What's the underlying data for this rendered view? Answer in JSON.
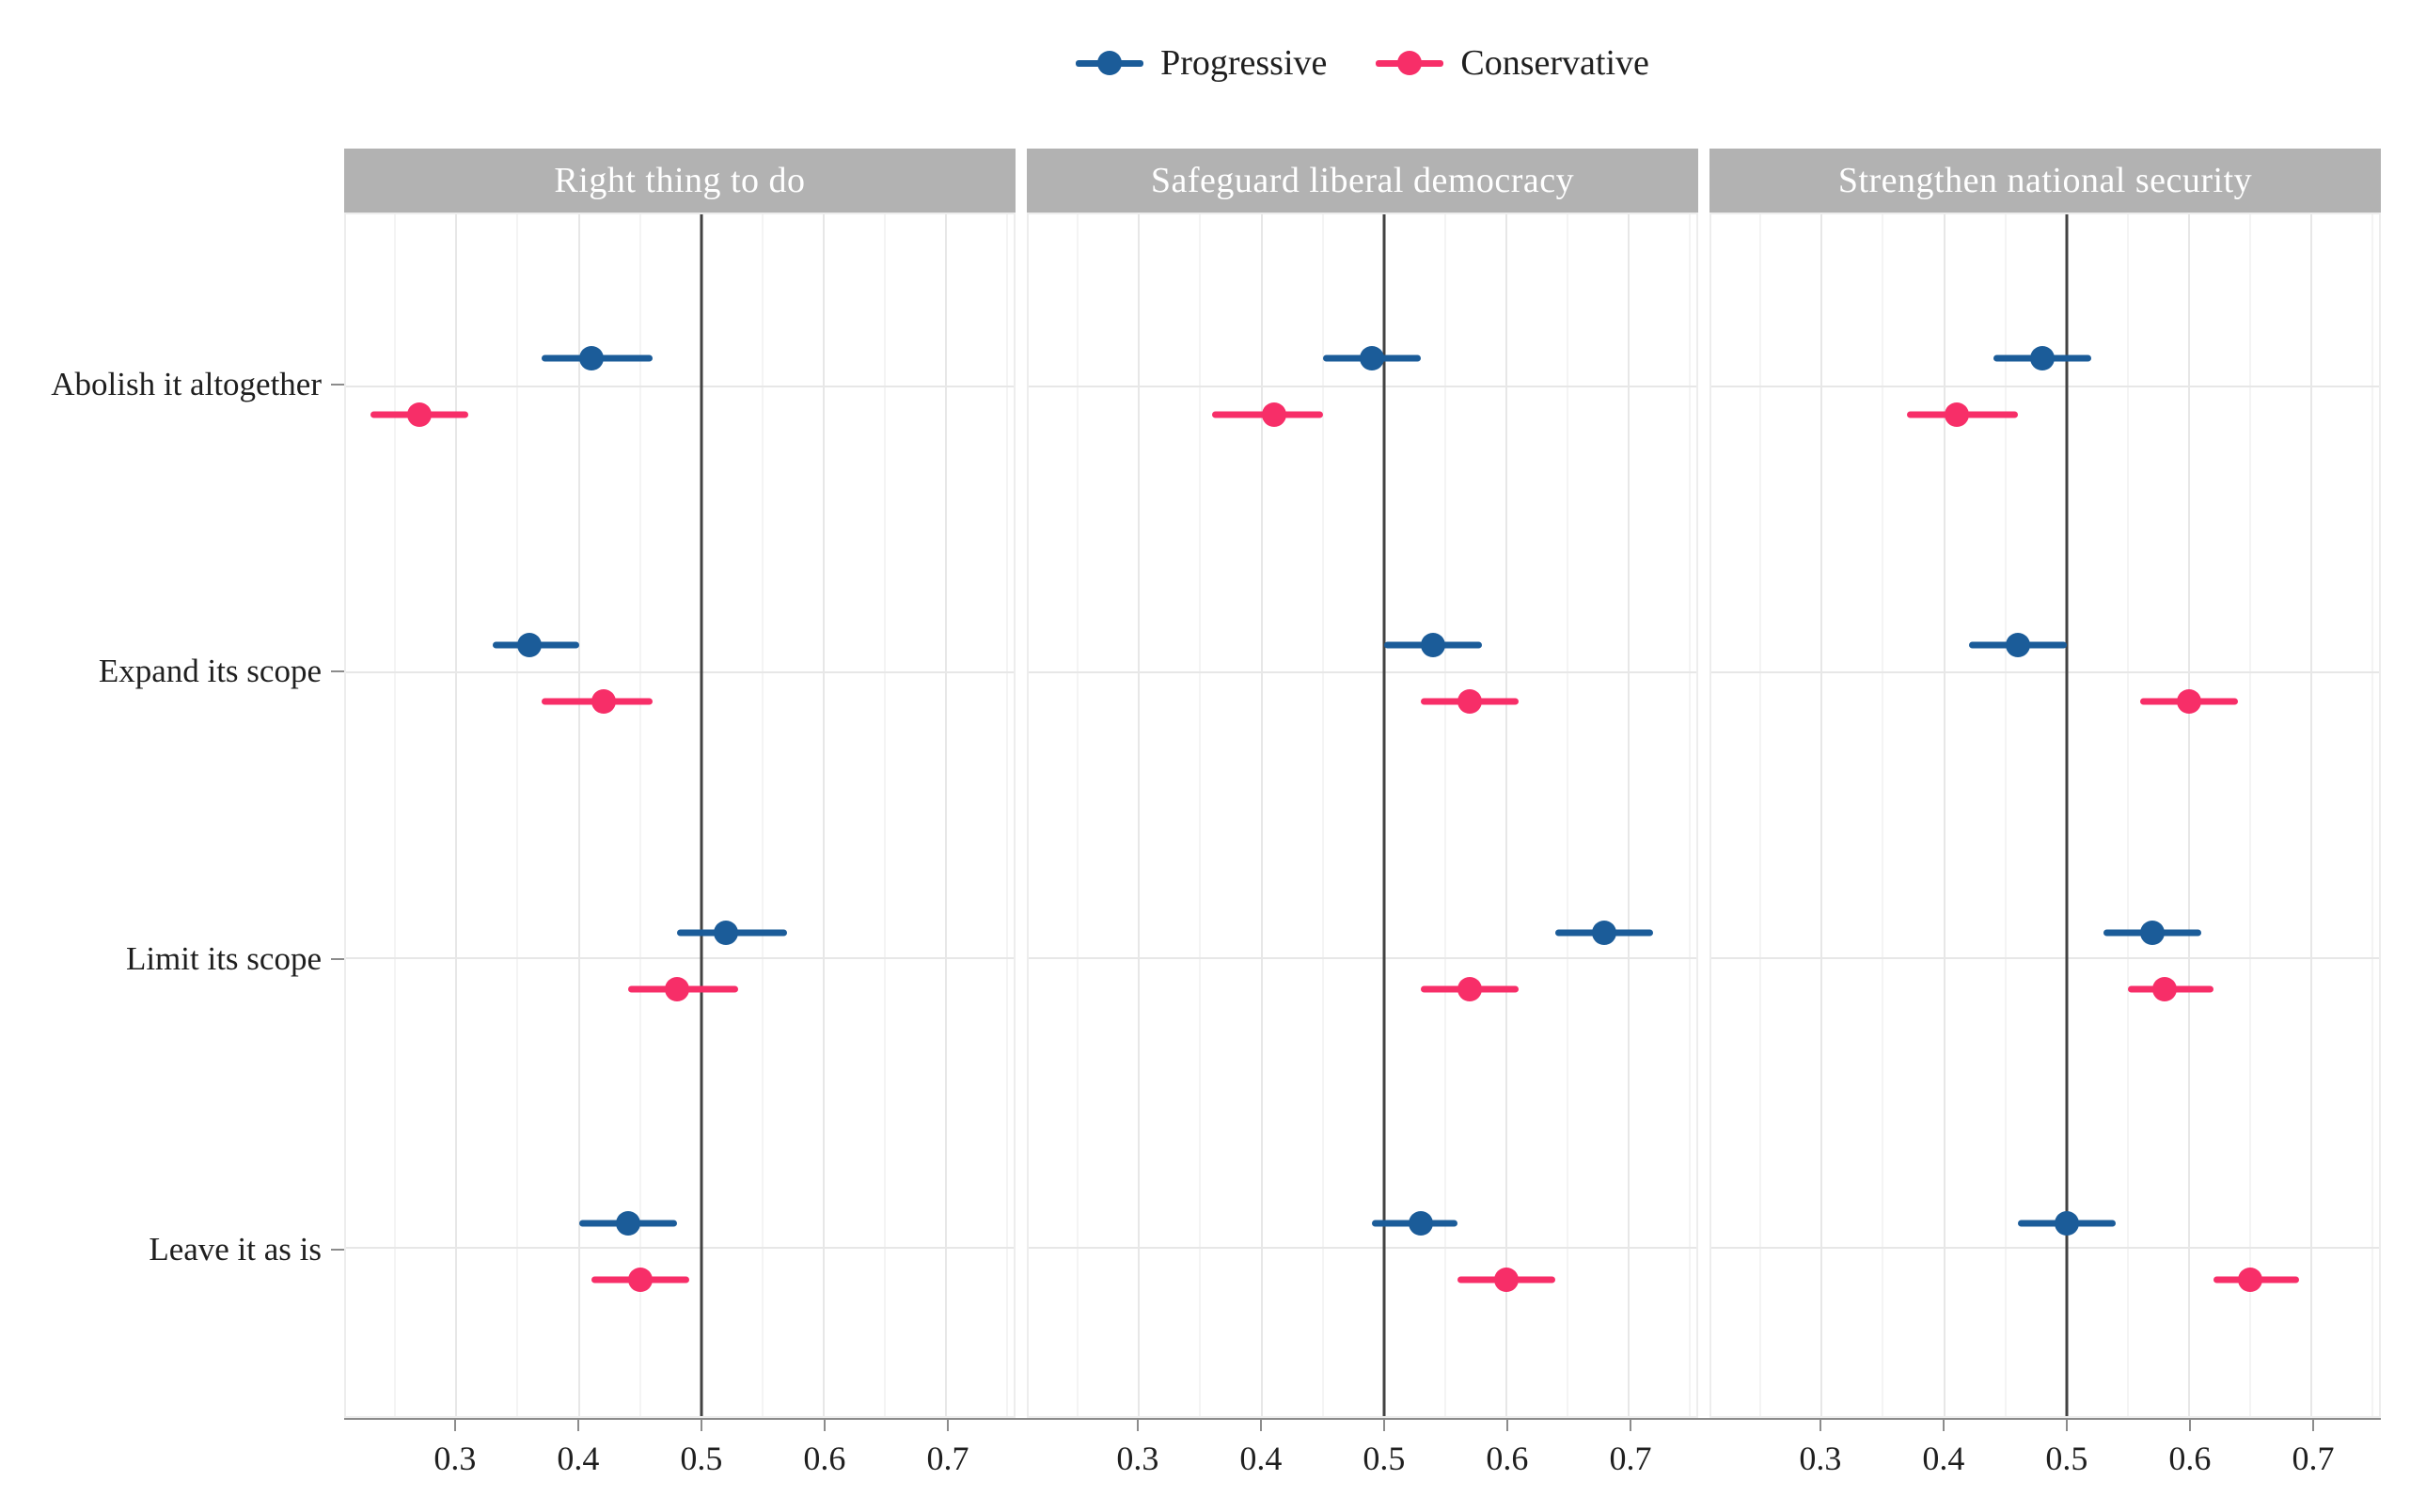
{
  "colors": {
    "progressive": "#1b5c99",
    "conservative": "#f72e68",
    "facet_header_bg": "#b2b2b2",
    "facet_header_text": "#ffffff",
    "reference_line": "#424242",
    "axis_line": "#8c8c8c"
  },
  "chart_data": {
    "type": "scatter",
    "subtype": "faceted-dot-plot-with-ci",
    "legend_position": "top-center",
    "grid": "on",
    "reference_line": 0.5,
    "x_range": [
      0.21,
      0.755
    ],
    "x_ticks": [
      0.3,
      0.4,
      0.5,
      0.6,
      0.7
    ],
    "x_tick_labels": [
      "0.3",
      "0.4",
      "0.5",
      "0.6",
      "0.7"
    ],
    "x_minor_gridlines": [
      0.25,
      0.35,
      0.45,
      0.55,
      0.65,
      0.75
    ],
    "xlabel": "",
    "ylabel": "",
    "categories": [
      "Abolish it altogether",
      "Expand its scope",
      "Limit its scope",
      "Leave it as is"
    ],
    "series": [
      {
        "key": "progressive",
        "label": "Progressive",
        "color": "#1b5c99"
      },
      {
        "key": "conservative",
        "label": "Conservative",
        "color": "#f72e68"
      }
    ],
    "facets": [
      {
        "label": "Right thing to do",
        "rows": [
          {
            "category": "Abolish it altogether",
            "progressive": {
              "est": 0.41,
              "lo": 0.37,
              "hi": 0.46
            },
            "conservative": {
              "est": 0.27,
              "lo": 0.23,
              "hi": 0.31
            }
          },
          {
            "category": "Expand its scope",
            "progressive": {
              "est": 0.36,
              "lo": 0.33,
              "hi": 0.4
            },
            "conservative": {
              "est": 0.42,
              "lo": 0.37,
              "hi": 0.46
            }
          },
          {
            "category": "Limit its scope",
            "progressive": {
              "est": 0.52,
              "lo": 0.48,
              "hi": 0.57
            },
            "conservative": {
              "est": 0.48,
              "lo": 0.44,
              "hi": 0.53
            }
          },
          {
            "category": "Leave it as is",
            "progressive": {
              "est": 0.44,
              "lo": 0.4,
              "hi": 0.48
            },
            "conservative": {
              "est": 0.45,
              "lo": 0.41,
              "hi": 0.49
            }
          }
        ]
      },
      {
        "label": "Safeguard liberal democracy",
        "rows": [
          {
            "category": "Abolish it altogether",
            "progressive": {
              "est": 0.49,
              "lo": 0.45,
              "hi": 0.53
            },
            "conservative": {
              "est": 0.41,
              "lo": 0.36,
              "hi": 0.45
            }
          },
          {
            "category": "Expand its scope",
            "progressive": {
              "est": 0.54,
              "lo": 0.5,
              "hi": 0.58
            },
            "conservative": {
              "est": 0.57,
              "lo": 0.53,
              "hi": 0.61
            }
          },
          {
            "category": "Limit its scope",
            "progressive": {
              "est": 0.68,
              "lo": 0.64,
              "hi": 0.72
            },
            "conservative": {
              "est": 0.57,
              "lo": 0.53,
              "hi": 0.61
            }
          },
          {
            "category": "Leave it as is",
            "progressive": {
              "est": 0.53,
              "lo": 0.49,
              "hi": 0.56
            },
            "conservative": {
              "est": 0.6,
              "lo": 0.56,
              "hi": 0.64
            }
          }
        ]
      },
      {
        "label": "Strengthen national security",
        "rows": [
          {
            "category": "Abolish it altogether",
            "progressive": {
              "est": 0.48,
              "lo": 0.44,
              "hi": 0.52
            },
            "conservative": {
              "est": 0.41,
              "lo": 0.37,
              "hi": 0.46
            }
          },
          {
            "category": "Expand its scope",
            "progressive": {
              "est": 0.46,
              "lo": 0.42,
              "hi": 0.5
            },
            "conservative": {
              "est": 0.6,
              "lo": 0.56,
              "hi": 0.64
            }
          },
          {
            "category": "Limit its scope",
            "progressive": {
              "est": 0.57,
              "lo": 0.53,
              "hi": 0.61
            },
            "conservative": {
              "est": 0.58,
              "lo": 0.55,
              "hi": 0.62
            }
          },
          {
            "category": "Leave it as is",
            "progressive": {
              "est": 0.5,
              "lo": 0.46,
              "hi": 0.54
            },
            "conservative": {
              "est": 0.65,
              "lo": 0.62,
              "hi": 0.69
            }
          }
        ]
      }
    ]
  }
}
